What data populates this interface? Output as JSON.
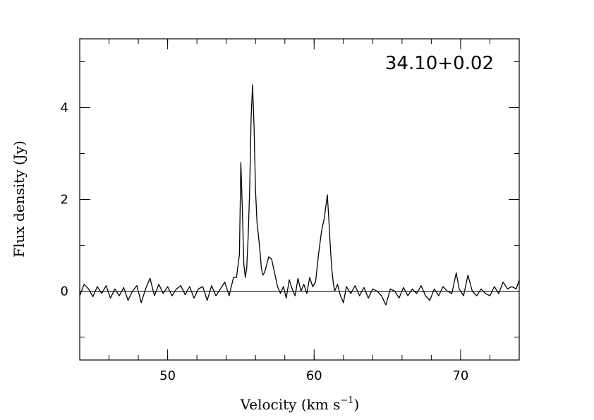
{
  "chart_data": {
    "type": "line",
    "title": "",
    "annotation": "34.10+0.02",
    "xlabel": "Velocity (km s",
    "xlabel_exp": "−1",
    "xlabel_close": ")",
    "ylabel": "Flux density (Jy)",
    "xlim": [
      44,
      74
    ],
    "ylim": [
      -1.5,
      5.5
    ],
    "x_ticks": [
      50,
      60,
      70
    ],
    "x_tick_labels": [
      "50",
      "60",
      "70"
    ],
    "y_ticks": [
      0,
      2,
      4
    ],
    "y_tick_labels": [
      "0",
      "2",
      "4"
    ],
    "x_minor_step": 2,
    "y_minor_step": 1,
    "grid": false,
    "legend": "none",
    "line_color": "#000000",
    "series": [
      {
        "x": [
          44.0,
          44.3,
          44.6,
          44.9,
          45.2,
          45.5,
          45.8,
          46.1,
          46.4,
          46.7,
          47.0,
          47.3,
          47.6,
          47.9,
          48.2,
          48.5,
          48.8,
          49.1,
          49.4,
          49.7,
          50.0,
          50.3,
          50.6,
          50.9,
          51.2,
          51.5,
          51.8,
          52.1,
          52.4,
          52.7,
          53.0,
          53.3,
          53.6,
          53.9,
          54.2,
          54.5,
          54.7,
          54.9,
          55.0,
          55.1,
          55.2,
          55.3,
          55.4,
          55.5,
          55.6,
          55.7,
          55.8,
          55.9,
          56.0,
          56.1,
          56.2,
          56.3,
          56.4,
          56.5,
          56.6,
          56.7,
          56.9,
          57.1,
          57.3,
          57.5,
          57.7,
          57.9,
          58.1,
          58.3,
          58.5,
          58.7,
          58.9,
          59.1,
          59.3,
          59.5,
          59.7,
          59.9,
          60.1,
          60.3,
          60.5,
          60.7,
          60.9,
          61.0,
          61.1,
          61.2,
          61.3,
          61.4,
          61.6,
          61.8,
          62.0,
          62.2,
          62.5,
          62.8,
          63.1,
          63.4,
          63.7,
          64.0,
          64.3,
          64.6,
          64.9,
          65.2,
          65.5,
          65.8,
          66.1,
          66.4,
          66.7,
          67.0,
          67.3,
          67.6,
          67.9,
          68.2,
          68.5,
          68.8,
          69.1,
          69.4,
          69.7,
          69.9,
          70.2,
          70.5,
          70.8,
          71.1,
          71.4,
          71.7,
          72.0,
          72.3,
          72.6,
          72.9,
          73.2,
          73.5,
          73.8,
          74.0
        ],
        "y": [
          -0.1,
          0.15,
          0.05,
          -0.12,
          0.1,
          -0.05,
          0.12,
          -0.15,
          0.05,
          -0.1,
          0.08,
          -0.2,
          0.0,
          0.12,
          -0.25,
          0.05,
          0.28,
          -0.1,
          0.15,
          -0.05,
          0.1,
          -0.1,
          0.05,
          0.12,
          -0.08,
          0.1,
          -0.15,
          0.05,
          0.1,
          -0.2,
          0.12,
          -0.1,
          0.05,
          0.2,
          -0.1,
          0.3,
          0.3,
          0.8,
          2.8,
          1.8,
          0.6,
          0.3,
          0.5,
          1.2,
          2.2,
          3.8,
          4.5,
          3.6,
          2.2,
          1.5,
          1.2,
          0.9,
          0.5,
          0.35,
          0.4,
          0.5,
          0.75,
          0.7,
          0.4,
          0.1,
          -0.05,
          0.1,
          -0.15,
          0.25,
          0.05,
          -0.1,
          0.28,
          0.0,
          0.15,
          -0.05,
          0.3,
          0.1,
          0.2,
          0.8,
          1.3,
          1.6,
          2.1,
          1.6,
          1.0,
          0.5,
          0.2,
          0.0,
          0.15,
          -0.1,
          -0.25,
          0.1,
          -0.05,
          0.12,
          -0.1,
          0.08,
          -0.15,
          0.05,
          0.0,
          -0.1,
          -0.3,
          0.05,
          0.0,
          -0.15,
          0.08,
          -0.1,
          0.05,
          -0.05,
          0.12,
          -0.1,
          -0.2,
          0.05,
          -0.1,
          0.1,
          0.0,
          -0.05,
          0.4,
          0.05,
          -0.1,
          0.35,
          0.0,
          -0.1,
          0.05,
          -0.05,
          -0.1,
          0.1,
          -0.05,
          0.2,
          0.05,
          0.1,
          0.05,
          0.25
        ]
      }
    ]
  }
}
